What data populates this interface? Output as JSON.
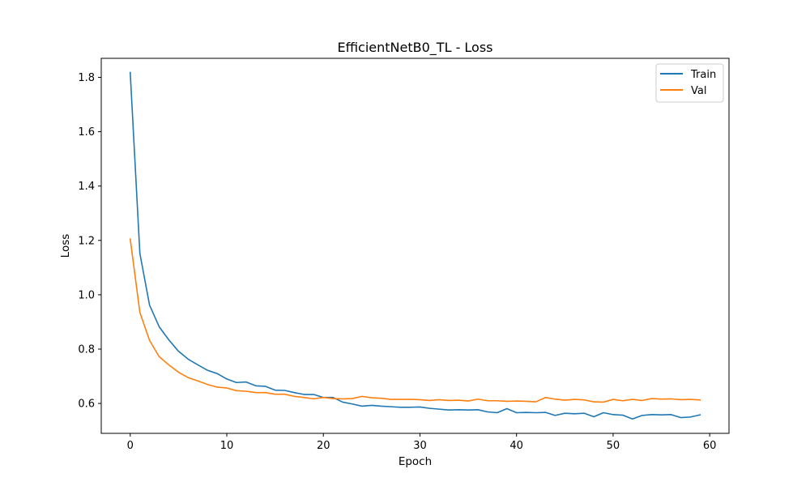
{
  "chart_data": {
    "type": "line",
    "title": "EfficientNetB0_TL - Loss",
    "xlabel": "Epoch",
    "ylabel": "Loss",
    "xlim": [
      -3,
      62
    ],
    "ylim": [
      0.49,
      1.87
    ],
    "xticks": [
      0,
      10,
      20,
      30,
      40,
      50,
      60
    ],
    "yticks": [
      0.6,
      0.8,
      1.0,
      1.2,
      1.4,
      1.6,
      1.8
    ],
    "ytick_labels": [
      "0.6",
      "0.8",
      "1.0",
      "1.2",
      "1.4",
      "1.6",
      "1.8"
    ],
    "grid": false,
    "legend_position": "top-right",
    "series": [
      {
        "name": "Train",
        "color": "#1f77b4",
        "values": [
          1.818,
          1.152,
          0.962,
          0.882,
          0.834,
          0.792,
          0.763,
          0.742,
          0.722,
          0.71,
          0.69,
          0.677,
          0.679,
          0.665,
          0.663,
          0.649,
          0.648,
          0.64,
          0.633,
          0.633,
          0.622,
          0.622,
          0.605,
          0.598,
          0.59,
          0.593,
          0.59,
          0.588,
          0.586,
          0.586,
          0.587,
          0.582,
          0.579,
          0.576,
          0.577,
          0.576,
          0.577,
          0.569,
          0.566,
          0.581,
          0.566,
          0.567,
          0.566,
          0.567,
          0.556,
          0.564,
          0.562,
          0.564,
          0.551,
          0.566,
          0.559,
          0.557,
          0.543,
          0.556,
          0.559,
          0.558,
          0.559,
          0.548,
          0.55,
          0.558
        ]
      },
      {
        "name": "Val",
        "color": "#ff7f0e",
        "values": [
          1.205,
          0.935,
          0.832,
          0.772,
          0.742,
          0.715,
          0.695,
          0.683,
          0.67,
          0.66,
          0.657,
          0.647,
          0.645,
          0.64,
          0.64,
          0.634,
          0.634,
          0.626,
          0.622,
          0.617,
          0.622,
          0.618,
          0.617,
          0.618,
          0.626,
          0.621,
          0.619,
          0.615,
          0.615,
          0.615,
          0.614,
          0.611,
          0.614,
          0.611,
          0.612,
          0.609,
          0.616,
          0.61,
          0.61,
          0.608,
          0.609,
          0.608,
          0.606,
          0.622,
          0.616,
          0.612,
          0.615,
          0.613,
          0.606,
          0.605,
          0.615,
          0.61,
          0.615,
          0.611,
          0.618,
          0.616,
          0.617,
          0.614,
          0.615,
          0.613
        ]
      }
    ]
  }
}
